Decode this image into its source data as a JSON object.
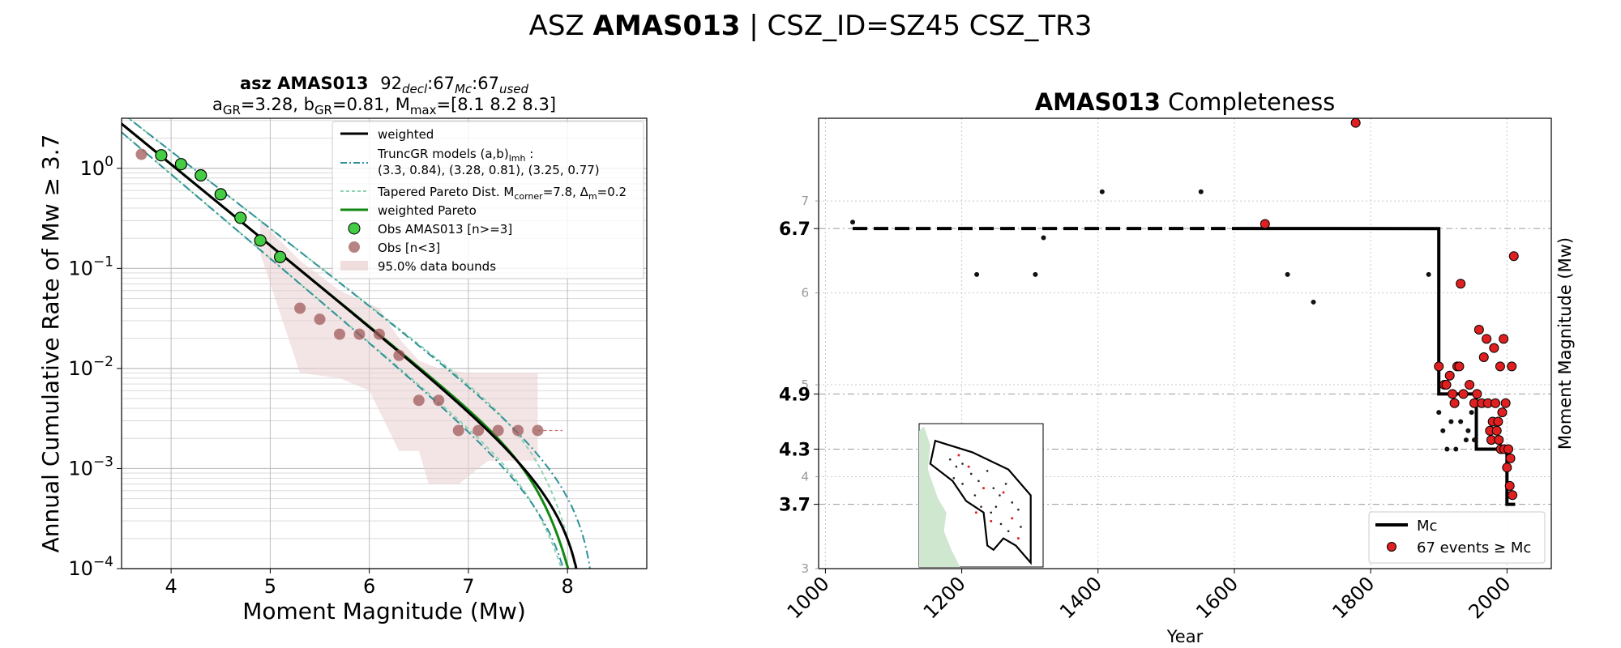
{
  "figure": {
    "title_prefix": "ASZ",
    "title_bold": "AMAS013",
    "title_suffix": "| CSZ_ID=SZ45 CSZ_TR3"
  },
  "chart_data": [
    {
      "type": "scatter",
      "title_bold": "asz AMAS013",
      "title_counts": [
        "92",
        "decl",
        "67",
        "Mc",
        "67",
        "used"
      ],
      "subtitle_parts": [
        "a",
        "GR",
        "=3.28,  b",
        "GR",
        "=0.81, M",
        "max",
        "=[8.1 8.2 8.3]"
      ],
      "xlabel": "Moment Magnitude (Mw)",
      "ylabel": "Annual Cumulative Rate of Mw  ≥  3.7",
      "xlim": [
        3.5,
        8.8
      ],
      "ylim_log10": [
        -4,
        0.5
      ],
      "yscale": "log",
      "xticks": [
        "4",
        "5",
        "6",
        "7",
        "8"
      ],
      "yticks": [
        {
          "base": "10",
          "exp": "0",
          "log": 0
        },
        {
          "base": "10",
          "exp": "−1",
          "log": -1
        },
        {
          "base": "10",
          "exp": "−2",
          "log": -2
        },
        {
          "base": "10",
          "exp": "−3",
          "log": -3
        },
        {
          "base": "10",
          "exp": "−4",
          "log": -4
        }
      ],
      "grid": true,
      "legend_position": "top-right",
      "legend": {
        "weighted": "weighted",
        "truncgr_line1": "TruncGR models (a,b)",
        "truncgr_sub": "lmh",
        "truncgr_colon": " :",
        "truncgr_line2": " (3.3, 0.84), (3.28, 0.81), (3.25, 0.77)",
        "tapered_prefix": "Tapered Pareto Dist. M",
        "tapered_sub1": "corner",
        "tapered_mid": "=7.8, Δ",
        "tapered_sub2": "m",
        "tapered_suffix": "=0.2",
        "weighted_pareto": "weighted Pareto",
        "obs_used": "Obs AMAS013 [n>=3]",
        "obs_few": "Obs [n<3]",
        "bounds": "95.0% data bounds"
      },
      "colors": {
        "weighted": "#000000",
        "truncgr": "#2e9199",
        "tapered": "#8fd2b2",
        "pareto": "#118811",
        "obs_used": "#44cc44",
        "obs_few": "#a05a5a",
        "bounds": "#e9cfcf"
      },
      "truncgr_models": [
        {
          "a": 3.3,
          "b": 0.84,
          "mmax": 8.1
        },
        {
          "a": 3.28,
          "b": 0.81,
          "mmax": 8.2
        },
        {
          "a": 3.25,
          "b": 0.77,
          "mmax": 8.3
        }
      ],
      "obs_used": [
        [
          3.9,
          1.35
        ],
        [
          4.1,
          1.1
        ],
        [
          4.3,
          0.85
        ],
        [
          4.5,
          0.55
        ],
        [
          4.7,
          0.32
        ],
        [
          4.9,
          0.19
        ],
        [
          5.1,
          0.13
        ]
      ],
      "obs_few": [
        [
          3.7,
          1.38
        ],
        [
          5.3,
          0.04
        ],
        [
          5.5,
          0.031
        ],
        [
          5.7,
          0.022
        ],
        [
          5.9,
          0.022
        ],
        [
          6.1,
          0.022
        ],
        [
          6.3,
          0.0135
        ],
        [
          6.5,
          0.0048
        ],
        [
          6.7,
          0.0048
        ],
        [
          6.9,
          0.0024
        ],
        [
          7.1,
          0.0024
        ],
        [
          7.3,
          0.0024
        ],
        [
          7.5,
          0.0024
        ],
        [
          7.7,
          0.0024
        ]
      ],
      "bounds_upper": [
        [
          4.9,
          0.3
        ],
        [
          5.3,
          0.12
        ],
        [
          5.7,
          0.06
        ],
        [
          6.1,
          0.04
        ],
        [
          6.3,
          0.02
        ],
        [
          6.5,
          0.012
        ],
        [
          6.7,
          0.01
        ],
        [
          7.0,
          0.009
        ],
        [
          7.7,
          0.009
        ]
      ],
      "bounds_lower": [
        [
          7.7,
          0.0012
        ],
        [
          7.2,
          0.0012
        ],
        [
          6.9,
          0.0007
        ],
        [
          6.6,
          0.0007
        ],
        [
          6.5,
          0.0015
        ],
        [
          6.3,
          0.0015
        ],
        [
          6.0,
          0.006
        ],
        [
          5.7,
          0.008
        ],
        [
          5.3,
          0.009
        ],
        [
          4.9,
          0.14
        ]
      ]
    },
    {
      "type": "scatter",
      "title_bold": "AMAS013",
      "title_rest": " Completeness",
      "xlabel": "Year",
      "ylabel": "Moment Magnitude (Mw)",
      "xlim": [
        990,
        2065
      ],
      "ylim": [
        3.0,
        7.9
      ],
      "xticks": [
        "1000",
        "1200",
        "1400",
        "1600",
        "1800",
        "2000"
      ],
      "yticks_minor": [
        "3",
        "4",
        "5",
        "6",
        "7"
      ],
      "mc_ticks": [
        "6.7",
        "4.9",
        "4.3",
        "3.7"
      ],
      "grid": true,
      "legend_position": "bottom-right",
      "legend": {
        "mc": "Mc",
        "events_prefix": "67 events ",
        "events_symbol": "≥",
        "events_suffix": " Mc"
      },
      "mc_steps": [
        [
          1040,
          6.7
        ],
        [
          1900,
          6.7
        ],
        [
          1900,
          4.9
        ],
        [
          1955,
          4.9
        ],
        [
          1955,
          4.3
        ],
        [
          2000,
          4.3
        ],
        [
          2000,
          3.7
        ],
        [
          2012,
          3.7
        ]
      ],
      "mc_dashed_until": 1600,
      "black_events": [
        [
          1040,
          6.77
        ],
        [
          1222,
          6.2
        ],
        [
          1308,
          6.2
        ],
        [
          1320,
          6.6
        ],
        [
          1406,
          7.1
        ],
        [
          1551,
          7.1
        ],
        [
          1678,
          6.2
        ],
        [
          1716,
          5.9
        ],
        [
          1885,
          6.2
        ],
        [
          1900,
          4.7
        ],
        [
          1906,
          4.5
        ],
        [
          1912,
          4.3
        ],
        [
          1918,
          4.6
        ],
        [
          1925,
          4.3
        ],
        [
          1932,
          4.6
        ],
        [
          1935,
          4.9
        ],
        [
          1940,
          4.4
        ],
        [
          1943,
          4.5
        ],
        [
          1948,
          4.7
        ],
        [
          1952,
          4.4
        ]
      ],
      "red_events": [
        [
          1645,
          6.75
        ],
        [
          1778,
          7.85
        ],
        [
          1900,
          5.2
        ],
        [
          1908,
          5.0
        ],
        [
          1911,
          5.0
        ],
        [
          1916,
          5.1
        ],
        [
          1920,
          4.9
        ],
        [
          1923,
          4.8
        ],
        [
          1927,
          5.2
        ],
        [
          1930,
          5.2
        ],
        [
          1932,
          6.1
        ],
        [
          1936,
          4.9
        ],
        [
          1945,
          5.0
        ],
        [
          1952,
          4.8
        ],
        [
          1956,
          4.9
        ],
        [
          1959,
          5.6
        ],
        [
          1963,
          4.8
        ],
        [
          1966,
          5.3
        ],
        [
          1970,
          5.5
        ],
        [
          1972,
          4.8
        ],
        [
          1975,
          4.5
        ],
        [
          1977,
          4.4
        ],
        [
          1979,
          4.6
        ],
        [
          1981,
          5.4
        ],
        [
          1983,
          4.8
        ],
        [
          1985,
          4.5
        ],
        [
          1987,
          4.6
        ],
        [
          1988,
          4.4
        ],
        [
          1990,
          5.2
        ],
        [
          1991,
          4.3
        ],
        [
          1993,
          4.7
        ],
        [
          1995,
          5.5
        ],
        [
          1996,
          4.3
        ],
        [
          1998,
          4.8
        ],
        [
          2000,
          4.1
        ],
        [
          2002,
          4.3
        ],
        [
          2004,
          3.9
        ],
        [
          2005,
          4.2
        ],
        [
          2007,
          5.2
        ],
        [
          2008,
          3.8
        ],
        [
          2010,
          6.4
        ]
      ],
      "colors": {
        "mc": "#000000",
        "red": "#e02020",
        "black": "#111111"
      },
      "inset": {
        "polygon": [
          [
            0.13,
            0.12
          ],
          [
            0.43,
            0.2
          ],
          [
            0.72,
            0.32
          ],
          [
            0.9,
            0.5
          ],
          [
            0.9,
            0.97
          ],
          [
            0.78,
            0.85
          ],
          [
            0.68,
            0.8
          ],
          [
            0.6,
            0.88
          ],
          [
            0.55,
            0.85
          ],
          [
            0.52,
            0.62
          ],
          [
            0.38,
            0.54
          ],
          [
            0.27,
            0.4
          ],
          [
            0.09,
            0.28
          ]
        ],
        "land": [
          [
            0.0,
            0.05
          ],
          [
            0.04,
            0.02
          ],
          [
            0.09,
            0.15
          ],
          [
            0.07,
            0.32
          ],
          [
            0.15,
            0.52
          ],
          [
            0.22,
            0.62
          ],
          [
            0.2,
            0.75
          ],
          [
            0.26,
            0.88
          ],
          [
            0.33,
            1.0
          ],
          [
            0.0,
            1.0
          ]
        ],
        "black_dots": [
          [
            0.25,
            0.25
          ],
          [
            0.3,
            0.3
          ],
          [
            0.35,
            0.28
          ],
          [
            0.42,
            0.35
          ],
          [
            0.48,
            0.4
          ],
          [
            0.55,
            0.33
          ],
          [
            0.6,
            0.45
          ],
          [
            0.65,
            0.5
          ],
          [
            0.7,
            0.42
          ],
          [
            0.75,
            0.55
          ],
          [
            0.8,
            0.6
          ],
          [
            0.45,
            0.5
          ],
          [
            0.5,
            0.58
          ],
          [
            0.58,
            0.62
          ],
          [
            0.66,
            0.7
          ],
          [
            0.72,
            0.75
          ],
          [
            0.82,
            0.72
          ],
          [
            0.35,
            0.42
          ],
          [
            0.28,
            0.38
          ],
          [
            0.62,
            0.58
          ]
        ],
        "red_dots": [
          [
            0.32,
            0.22
          ],
          [
            0.4,
            0.3
          ],
          [
            0.52,
            0.45
          ],
          [
            0.68,
            0.48
          ],
          [
            0.75,
            0.66
          ],
          [
            0.46,
            0.62
          ],
          [
            0.58,
            0.68
          ],
          [
            0.8,
            0.8
          ]
        ]
      }
    }
  ]
}
